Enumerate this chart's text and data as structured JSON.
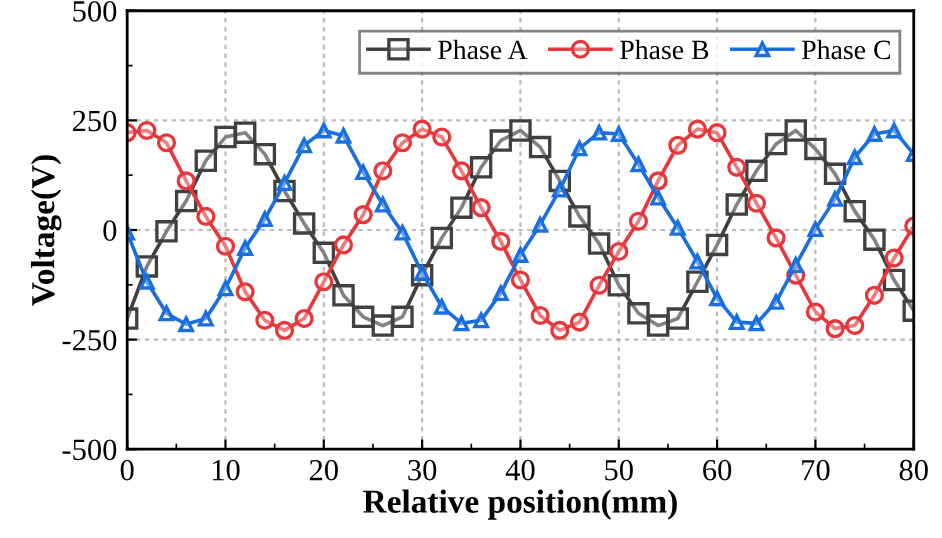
{
  "chart_data": {
    "type": "line",
    "xlabel": "Relative position(mm)",
    "ylabel": "Voltage(V)",
    "x": [
      0,
      2,
      4,
      6,
      8,
      10,
      12,
      14,
      16,
      18,
      20,
      22,
      24,
      26,
      28,
      30,
      32,
      34,
      36,
      38,
      40,
      42,
      44,
      46,
      48,
      50,
      52,
      54,
      56,
      58,
      60,
      62,
      64,
      66,
      68,
      70,
      72,
      74,
      76,
      78,
      80
    ],
    "series": [
      {
        "name": "Phase A",
        "color": "#404040",
        "marker": "square",
        "values": [
          -202,
          -83,
          -3,
          66,
          158,
          212,
          222,
          173,
          89,
          15,
          -52,
          -149,
          -198,
          -218,
          -198,
          -103,
          -18,
          51,
          143,
          204,
          227,
          189,
          112,
          31,
          -31,
          -126,
          -190,
          -218,
          -202,
          -118,
          -34,
          58,
          135,
          196,
          227,
          185,
          128,
          43,
          -22,
          -114,
          -184
        ]
      },
      {
        "name": "Phase B",
        "color": "#e8373a",
        "marker": "circle",
        "values": [
          222,
          227,
          199,
          112,
          31,
          -37,
          -141,
          -206,
          -229,
          -202,
          -118,
          -34,
          35,
          135,
          199,
          230,
          212,
          135,
          51,
          -26,
          -114,
          -195,
          -229,
          -210,
          -126,
          -49,
          20,
          112,
          193,
          230,
          222,
          143,
          61,
          -18,
          -103,
          -187,
          -225,
          -218,
          -149,
          -64,
          9
        ]
      },
      {
        "name": "Phase C",
        "color": "#1a6fdf",
        "marker": "triangle",
        "values": [
          -6,
          -118,
          -190,
          -215,
          -202,
          -133,
          -41,
          25,
          107,
          193,
          227,
          215,
          132,
          58,
          -6,
          -98,
          -175,
          -213,
          -206,
          -144,
          -57,
          12,
          92,
          186,
          222,
          219,
          150,
          74,
          5,
          -72,
          -156,
          -210,
          -213,
          -164,
          -80,
          2,
          71,
          166,
          219,
          227,
          173
        ]
      }
    ],
    "xlim": [
      0,
      80
    ],
    "xticks": [
      0,
      10,
      20,
      30,
      40,
      50,
      60,
      70,
      80
    ],
    "ylim": [
      -500,
      500
    ],
    "yticks": [
      -500,
      -250,
      0,
      250,
      500
    ],
    "grid": true,
    "legend": "top right",
    "line_style": "solid"
  }
}
